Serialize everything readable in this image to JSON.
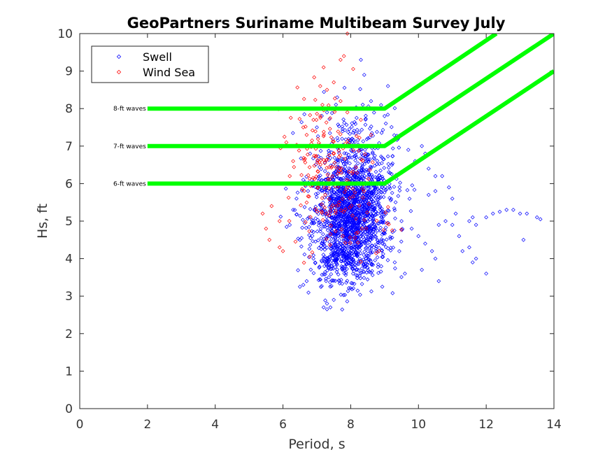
{
  "chart_data": {
    "type": "scatter",
    "title": "GeoPartners Suriname Multibeam Survey July",
    "xlabel": "Period, s",
    "ylabel": "Hs, ft",
    "xlim": [
      0,
      14
    ],
    "ylim": [
      0,
      10
    ],
    "xticks": [
      "0",
      "2",
      "4",
      "6",
      "8",
      "10",
      "12",
      "14"
    ],
    "yticks": [
      "0",
      "1",
      "2",
      "3",
      "4",
      "5",
      "6",
      "7",
      "8",
      "9",
      "10"
    ],
    "grid": false,
    "legend": {
      "placement": "top-left",
      "entries": [
        {
          "name": "Swell",
          "color": "#0000ff",
          "marker": "diamond"
        },
        {
          "name": "Wind Sea",
          "color": "#ff0000",
          "marker": "diamond"
        }
      ]
    },
    "series": [
      {
        "name": "Swell",
        "color": "#0000ff",
        "clusters": [
          {
            "center": [
              8.0,
              5.0
            ],
            "spread": [
              0.55,
              0.75
            ],
            "count": 1300
          },
          {
            "center": [
              8.1,
              6.2
            ],
            "spread": [
              0.6,
              0.9
            ],
            "count": 450
          },
          {
            "center": [
              7.8,
              3.9
            ],
            "spread": [
              0.4,
              0.3
            ],
            "count": 120
          }
        ],
        "points": [
          [
            7.3,
            2.65
          ],
          [
            7.4,
            2.7
          ],
          [
            7.2,
            2.7
          ],
          [
            7.5,
            2.9
          ],
          [
            6.6,
            3.3
          ],
          [
            6.5,
            3.25
          ],
          [
            6.7,
            3.4
          ],
          [
            9.5,
            5.0
          ],
          [
            9.8,
            4.8
          ],
          [
            10.0,
            4.6
          ],
          [
            10.2,
            4.4
          ],
          [
            10.4,
            4.2
          ],
          [
            10.5,
            4.0
          ],
          [
            10.6,
            4.9
          ],
          [
            10.8,
            5.0
          ],
          [
            11.0,
            4.9
          ],
          [
            11.2,
            4.6
          ],
          [
            11.3,
            4.2
          ],
          [
            11.6,
            3.9
          ],
          [
            11.7,
            4.0
          ],
          [
            10.3,
            5.7
          ],
          [
            10.5,
            5.8
          ],
          [
            10.7,
            6.2
          ],
          [
            10.9,
            5.9
          ],
          [
            11.0,
            5.6
          ],
          [
            11.1,
            5.2
          ],
          [
            11.5,
            5.0
          ],
          [
            11.6,
            5.1
          ],
          [
            11.7,
            4.9
          ],
          [
            12.0,
            5.1
          ],
          [
            12.2,
            5.2
          ],
          [
            12.4,
            5.25
          ],
          [
            12.6,
            5.3
          ],
          [
            12.8,
            5.3
          ],
          [
            13.0,
            5.2
          ],
          [
            13.2,
            5.2
          ],
          [
            13.5,
            5.1
          ],
          [
            13.6,
            5.05
          ],
          [
            13.1,
            4.5
          ],
          [
            12.0,
            3.6
          ],
          [
            11.5,
            4.3
          ],
          [
            9.3,
            3.9
          ],
          [
            9.6,
            3.6
          ],
          [
            10.1,
            3.7
          ],
          [
            10.6,
            3.4
          ],
          [
            9.1,
            8.6
          ],
          [
            8.3,
            9.3
          ],
          [
            8.4,
            8.9
          ],
          [
            8.6,
            8.2
          ],
          [
            9.0,
            7.8
          ],
          [
            9.4,
            7.2
          ],
          [
            9.9,
            6.6
          ],
          [
            10.5,
            6.2
          ],
          [
            9.7,
            6.9
          ],
          [
            10.1,
            7.0
          ],
          [
            10.3,
            6.4
          ],
          [
            10.2,
            6.8
          ],
          [
            6.9,
            4.0
          ],
          [
            6.5,
            4.5
          ],
          [
            6.3,
            5.3
          ],
          [
            6.2,
            4.9
          ],
          [
            6.4,
            5.6
          ],
          [
            6.6,
            6.1
          ],
          [
            6.8,
            6.8
          ],
          [
            7.0,
            7.5
          ],
          [
            7.3,
            7.9
          ],
          [
            7.6,
            8.3
          ],
          [
            8.0,
            8.0
          ]
        ]
      },
      {
        "name": "Wind Sea",
        "color": "#ff0000",
        "clusters": [
          {
            "center": [
              7.2,
              6.6
            ],
            "spread": [
              0.55,
              0.9
            ],
            "count": 160
          },
          {
            "center": [
              8.0,
              5.2
            ],
            "spread": [
              0.6,
              0.7
            ],
            "count": 60
          }
        ],
        "points": [
          [
            5.4,
            5.2
          ],
          [
            5.5,
            4.8
          ],
          [
            5.6,
            4.5
          ],
          [
            5.9,
            4.3
          ],
          [
            6.0,
            4.2
          ],
          [
            5.9,
            5.0
          ],
          [
            6.2,
            6.2
          ],
          [
            6.3,
            6.6
          ],
          [
            6.1,
            7.1
          ],
          [
            6.6,
            7.5
          ],
          [
            6.8,
            8.0
          ],
          [
            7.1,
            8.6
          ],
          [
            7.3,
            8.5
          ],
          [
            7.5,
            8.7
          ],
          [
            7.7,
            9.3
          ],
          [
            7.8,
            9.4
          ],
          [
            7.9,
            10.0
          ],
          [
            7.7,
            8.2
          ],
          [
            7.4,
            8.0
          ],
          [
            7.9,
            7.9
          ],
          [
            8.3,
            7.7
          ],
          [
            8.6,
            7.3
          ],
          [
            6.9,
            7.7
          ],
          [
            6.7,
            7.3
          ],
          [
            7.2,
            9.1
          ]
        ]
      }
    ],
    "annotations": [
      {
        "label": "8-ft waves",
        "x": 2,
        "y": 8
      },
      {
        "label": "7-ft waves",
        "x": 2,
        "y": 7
      },
      {
        "label": "6-ft waves",
        "x": 2,
        "y": 6
      }
    ],
    "threshold_lines": {
      "color": "#00ff00",
      "lines": [
        {
          "label": "8-ft waves",
          "points": [
            [
              2,
              8
            ],
            [
              9,
              8
            ],
            [
              12.3,
              10
            ]
          ]
        },
        {
          "label": "7-ft waves",
          "points": [
            [
              2,
              7
            ],
            [
              9,
              7
            ],
            [
              14,
              10
            ]
          ]
        },
        {
          "label": "6-ft waves",
          "points": [
            [
              2,
              6
            ],
            [
              9,
              6
            ],
            [
              14,
              9
            ]
          ]
        }
      ]
    }
  }
}
